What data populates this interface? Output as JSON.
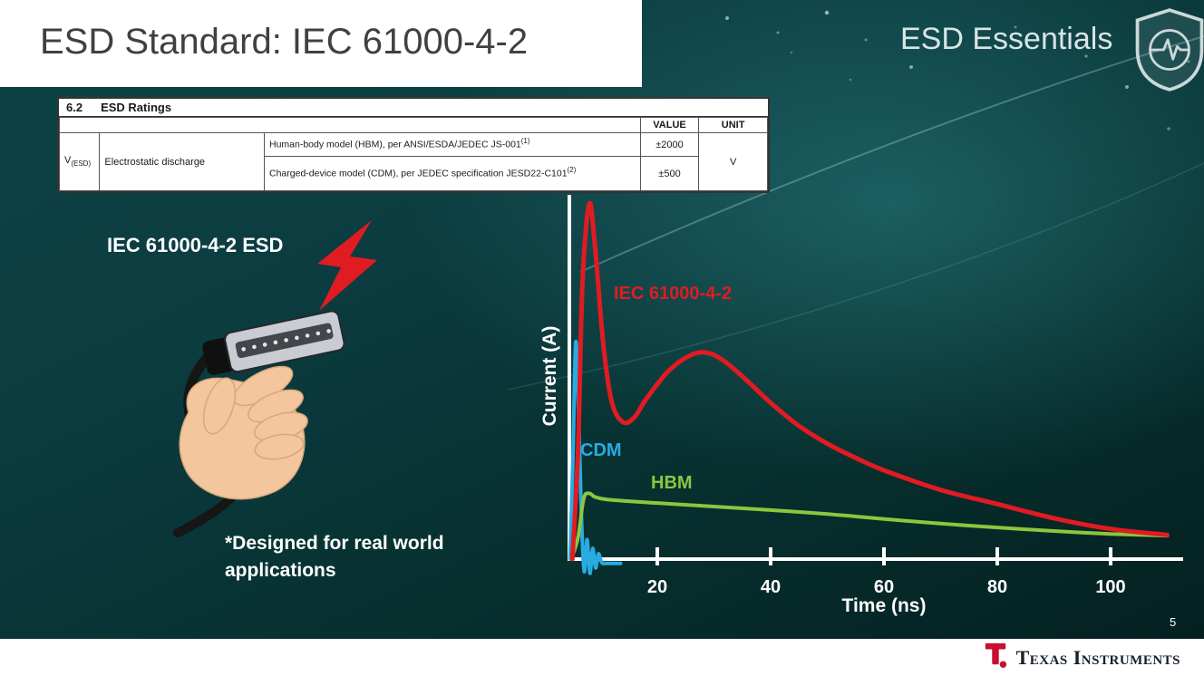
{
  "slide": {
    "title": "ESD Standard: IEC 61000-4-2",
    "brand": "ESD Essentials",
    "page_number": "5",
    "footer_brand": "Texas Instruments"
  },
  "ratings_table": {
    "section_number": "6.2",
    "section_title": "ESD Ratings",
    "value_header": "VALUE",
    "unit_header": "UNIT",
    "symbol_base": "V",
    "symbol_sub": "(ESD)",
    "parameter": "Electrostatic discharge",
    "rows": [
      {
        "condition": "Human-body model (HBM), per ANSI/ESDA/JEDEC JS-001",
        "footnote": "(1)",
        "value": "±2000"
      },
      {
        "condition": "Charged-device model (CDM), per JEDEC specification JESD22-C101",
        "footnote": "(2)",
        "value": "±500"
      }
    ],
    "unit": "V"
  },
  "illustration": {
    "label": "IEC 61000-4-2 ESD",
    "note": "*Designed for real world applications"
  },
  "chart_data": {
    "type": "line",
    "title": "",
    "xlabel": "Time (ns)",
    "ylabel": "Current (A)",
    "xlim": [
      0,
      112
    ],
    "ylim": [
      -0.08,
      1.08
    ],
    "x_ticks": [
      20,
      40,
      60,
      80,
      100
    ],
    "grid": false,
    "legend_position": "inline-labels",
    "series": [
      {
        "name": "CDM",
        "color": "#29abe2",
        "points": [
          [
            4.6,
            0
          ],
          [
            5.1,
            0.28
          ],
          [
            5.6,
            0.61
          ],
          [
            6.1,
            0.42
          ],
          [
            6.6,
            0.12
          ],
          [
            7.1,
            -0.035
          ],
          [
            7.6,
            0.055
          ],
          [
            8.1,
            -0.04
          ],
          [
            8.6,
            0.03
          ],
          [
            9.1,
            -0.025
          ],
          [
            9.6,
            0.015
          ],
          [
            10.2,
            -0.01
          ],
          [
            11,
            -0.012
          ],
          [
            13.5,
            -0.012
          ]
        ]
      },
      {
        "name": "HBM",
        "color": "#8dc63f",
        "points": [
          [
            4.8,
            0
          ],
          [
            6,
            0.06
          ],
          [
            7,
            0.17
          ],
          [
            8,
            0.185
          ],
          [
            9,
            0.175
          ],
          [
            11,
            0.168
          ],
          [
            15,
            0.163
          ],
          [
            20,
            0.158
          ],
          [
            30,
            0.148
          ],
          [
            40,
            0.138
          ],
          [
            50,
            0.127
          ],
          [
            60,
            0.113
          ],
          [
            70,
            0.1
          ],
          [
            80,
            0.089
          ],
          [
            90,
            0.079
          ],
          [
            100,
            0.071
          ],
          [
            110,
            0.066
          ]
        ]
      },
      {
        "name": "IEC 61000-4-2",
        "color": "#e11b22",
        "points": [
          [
            5,
            0
          ],
          [
            6,
            0.3
          ],
          [
            6.8,
            0.78
          ],
          [
            8,
            1.0
          ],
          [
            9,
            0.88
          ],
          [
            10.5,
            0.6
          ],
          [
            12,
            0.44
          ],
          [
            14,
            0.385
          ],
          [
            16,
            0.4
          ],
          [
            18,
            0.45
          ],
          [
            22,
            0.53
          ],
          [
            26,
            0.575
          ],
          [
            29,
            0.58
          ],
          [
            32,
            0.555
          ],
          [
            36,
            0.5
          ],
          [
            40,
            0.44
          ],
          [
            45,
            0.375
          ],
          [
            50,
            0.325
          ],
          [
            55,
            0.285
          ],
          [
            60,
            0.25
          ],
          [
            70,
            0.195
          ],
          [
            80,
            0.155
          ],
          [
            90,
            0.115
          ],
          [
            100,
            0.085
          ],
          [
            110,
            0.068
          ]
        ]
      }
    ],
    "annotations": [
      {
        "text": "IEC 61000-4-2",
        "color": "#e11b22"
      },
      {
        "text": "CDM",
        "color": "#29abe2"
      },
      {
        "text": "HBM",
        "color": "#8dc63f"
      }
    ]
  }
}
